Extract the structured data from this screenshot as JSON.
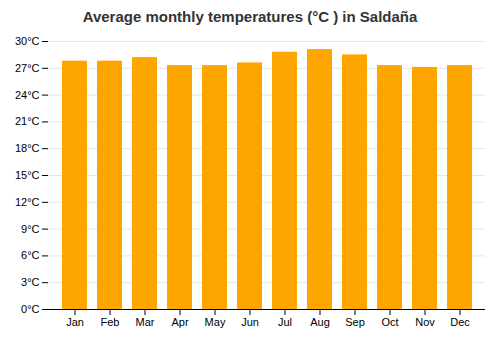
{
  "chart_data": {
    "type": "bar",
    "title": "Average monthly temperatures (°C ) in Saldaña",
    "categories": [
      "Jan",
      "Feb",
      "Mar",
      "Apr",
      "May",
      "Jun",
      "Jul",
      "Aug",
      "Sep",
      "Oct",
      "Nov",
      "Dec"
    ],
    "values": [
      27.8,
      27.8,
      28.2,
      27.3,
      27.3,
      27.6,
      28.8,
      29.1,
      28.5,
      27.3,
      27.1,
      27.3
    ],
    "color": "#FFA500",
    "ylim": [
      0,
      30
    ],
    "yticks": [
      {
        "value": 0,
        "label": "0°C"
      },
      {
        "value": 3,
        "label": "3°C"
      },
      {
        "value": 6,
        "label": "6°C"
      },
      {
        "value": 9,
        "label": "9°C"
      },
      {
        "value": 12,
        "label": "12°C"
      },
      {
        "value": 15,
        "label": "15°C"
      },
      {
        "value": 18,
        "label": "18°C"
      },
      {
        "value": 21,
        "label": "21°C"
      },
      {
        "value": 24,
        "label": "24°C"
      },
      {
        "value": 27,
        "label": "27°C"
      },
      {
        "value": 30,
        "label": "30°C"
      }
    ],
    "grid": true
  }
}
